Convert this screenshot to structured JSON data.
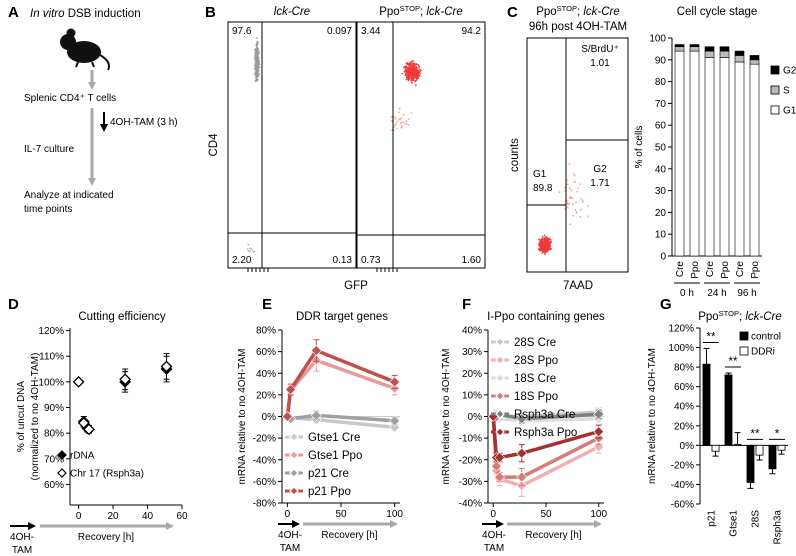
{
  "panel_a": {
    "letter": "A",
    "title": [
      {
        "text": "In vitro",
        "italic": true
      },
      {
        "text": " DSB induction"
      }
    ],
    "steps": [
      "Splenic CD4⁺ T cells",
      "4OH-TAM (3 h)",
      "IL-7 culture",
      "Analyze at indicated",
      "time points"
    ]
  },
  "panel_b": {
    "letter": "B",
    "ylabel": "CD4",
    "xlabel": "GFP",
    "plots": [
      {
        "title": [
          {
            "text": "lck-Cre",
            "italic": true
          }
        ],
        "quadrants": [
          "97.6",
          "0.097",
          "2.20",
          "0.13"
        ]
      },
      {
        "title": [
          {
            "text": "Ppo"
          },
          {
            "text": "STOP",
            "sup": true
          },
          {
            "text": "; "
          },
          {
            "text": "lck-Cre",
            "italic": true
          }
        ],
        "quadrants": [
          "3.44",
          "94.2",
          "0.73",
          "1.60"
        ]
      }
    ]
  },
  "panel_c": {
    "letter": "C",
    "title": [
      {
        "text": "Ppo"
      },
      {
        "text": "STOP",
        "sup": true
      },
      {
        "text": "; "
      },
      {
        "text": "lck-Cre",
        "italic": true
      }
    ],
    "subtitle": "96h post 4OH-TAM",
    "gates": [
      {
        "name": "S/BrdU⁺",
        "value": "1.01"
      },
      {
        "name": "G1",
        "value": "89.8"
      },
      {
        "name": "G2",
        "value": "1.71"
      }
    ],
    "ylabel": "counts",
    "xlabel": "7AAD"
  },
  "chart_data": [
    {
      "type": "bar",
      "stacked": true,
      "title": "Cell cycle stage",
      "ylabel": "% of cells",
      "categories": [
        "Cre",
        "Ppo",
        "Cre",
        "Ppo",
        "Cre",
        "Ppo"
      ],
      "groups": [
        "0 h",
        "24 h",
        "96 h"
      ],
      "series": [
        {
          "name": "G1",
          "color": "#ffffff",
          "values": [
            94,
            94,
            91,
            91,
            89,
            88
          ]
        },
        {
          "name": "S",
          "color": "#bbbbbb",
          "values": [
            2,
            2,
            3,
            3,
            3,
            2
          ]
        },
        {
          "name": "G2",
          "color": "#000000",
          "values": [
            1,
            1,
            2,
            2,
            2,
            2
          ]
        }
      ],
      "ylim": [
        0,
        100
      ],
      "yticks": [
        0,
        10,
        20,
        30,
        40,
        50,
        60,
        70,
        80,
        90,
        100
      ],
      "legend": "right"
    },
    {
      "type": "scatter",
      "panel": "D",
      "title": "Cutting efficiency",
      "ylabel": [
        "% of uncut DNA",
        "(normalized to no 4OH-TAM)"
      ],
      "xlabel": "Recovery [h]",
      "start_label": [
        "4OH-",
        "TAM"
      ],
      "series": [
        {
          "name": "rDNA",
          "marker": "filled",
          "color": "#000000",
          "x": [
            3,
            5,
            27,
            51
          ],
          "values": [
            84.5,
            82,
            100,
            105
          ],
          "errors": [
            2,
            1.5,
            4,
            5
          ]
        },
        {
          "name": "Chr 17 (Rsph3a)",
          "marker": "open",
          "color": "#000000",
          "x": [
            0,
            3,
            6,
            27,
            51
          ],
          "values": [
            100,
            84,
            81.5,
            101,
            106
          ],
          "errors": [
            null,
            1.5,
            1.5,
            4,
            5
          ]
        }
      ],
      "xlim": [
        -5,
        60
      ],
      "xticks": [
        0,
        20,
        40,
        60
      ],
      "ylim": [
        52,
        121
      ],
      "yticks": [
        {
          "value": 60,
          "label": "60%"
        },
        {
          "value": 70,
          "label": "70%"
        },
        {
          "value": 80,
          "label": "80%"
        },
        {
          "value": 90,
          "label": "90%"
        },
        {
          "value": 100,
          "label": "100%"
        },
        {
          "value": 110,
          "label": "110%"
        },
        {
          "value": 120,
          "label": "120%"
        }
      ],
      "legend": "lower left"
    },
    {
      "type": "line",
      "panel": "E",
      "title": "DDR target genes",
      "ylabel": "mRNA relative to no 4OH-TAM",
      "xlabel": "Recovery [h]",
      "start_label": [
        "4OH-",
        "TAM"
      ],
      "series": [
        {
          "name": "Gtse1 Cre",
          "color": "#c8c8c8",
          "x": [
            0,
            3,
            27,
            100
          ],
          "values": [
            0,
            -1,
            -3,
            -10
          ],
          "errors": [
            null,
            2,
            3,
            2
          ]
        },
        {
          "name": "Gtse1 Ppo",
          "color": "#e49c9a",
          "x": [
            0,
            3,
            27,
            100
          ],
          "values": [
            0,
            24,
            52,
            26
          ],
          "errors": [
            null,
            4,
            10,
            6
          ]
        },
        {
          "name": "p21 Cre",
          "color": "#a0a0a0",
          "x": [
            0,
            3,
            27,
            100
          ],
          "values": [
            0,
            -2,
            1,
            -4
          ],
          "errors": [
            null,
            2,
            4,
            3
          ]
        },
        {
          "name": "p21 Ppo",
          "color": "#c0504d",
          "x": [
            0,
            3,
            27,
            100
          ],
          "values": [
            0,
            25,
            61,
            32
          ],
          "errors": [
            null,
            5,
            10,
            6
          ]
        }
      ],
      "xlim": [
        -5,
        105
      ],
      "xticks": [
        0,
        50,
        100
      ],
      "ylim": [
        -80,
        80
      ],
      "yticks": [
        {
          "value": -80,
          "label": "-80%"
        },
        {
          "value": -60,
          "label": "-60%"
        },
        {
          "value": -40,
          "label": "-40%"
        },
        {
          "value": -20,
          "label": "-20%"
        },
        {
          "value": 0,
          "label": "0%"
        },
        {
          "value": 20,
          "label": "20%"
        },
        {
          "value": 40,
          "label": "40%"
        },
        {
          "value": 60,
          "label": "60%"
        },
        {
          "value": 80,
          "label": "80%"
        }
      ],
      "legend": "lower left"
    },
    {
      "type": "line",
      "panel": "F",
      "title": "I-Ppo containing genes",
      "ylabel": "mRNA relative to no 4OH-TAM",
      "xlabel": "Recovery [h]",
      "start_label": [
        "4OH-",
        "TAM"
      ],
      "series": [
        {
          "name": "28S Cre",
          "color": "#c8c8c8",
          "x": [
            0,
            3,
            6,
            27,
            100
          ],
          "values": [
            0,
            1,
            0,
            0,
            2
          ],
          "errors": [
            null,
            2,
            2,
            3,
            2
          ]
        },
        {
          "name": "28S Ppo",
          "color": "#f0b0ae",
          "x": [
            0,
            3,
            6,
            27,
            100
          ],
          "values": [
            0,
            -25,
            -29,
            -32,
            -14
          ],
          "errors": [
            null,
            2,
            3,
            5,
            3
          ]
        },
        {
          "name": "18S Cre",
          "color": "#dcdcdc",
          "x": [
            0,
            3,
            6,
            27,
            100
          ],
          "values": [
            0,
            -1,
            -1,
            -2,
            -1
          ],
          "errors": [
            null,
            1,
            1,
            2,
            2
          ]
        },
        {
          "name": "18S Ppo",
          "color": "#d47c79",
          "x": [
            0,
            3,
            6,
            27,
            100
          ],
          "values": [
            0,
            -23,
            -28,
            -28,
            -10
          ],
          "errors": [
            null,
            2,
            2,
            4,
            3
          ]
        },
        {
          "name": "Rsph3a Cre",
          "color": "#808080",
          "x": [
            0,
            3,
            6,
            27,
            100
          ],
          "values": [
            0,
            0,
            1,
            -1,
            1
          ],
          "errors": [
            null,
            1,
            1,
            2,
            2
          ]
        },
        {
          "name": "Rsph3a Ppo",
          "color": "#a3312e",
          "x": [
            0,
            3,
            6,
            27,
            100
          ],
          "values": [
            0,
            -19,
            -19,
            -17,
            -7
          ],
          "errors": [
            null,
            2,
            2,
            4,
            3
          ]
        }
      ],
      "xlim": [
        -5,
        105
      ],
      "xticks": [
        0,
        50,
        100
      ],
      "ylim": [
        -40,
        40
      ],
      "yticks": [
        {
          "value": -40,
          "label": "-40%"
        },
        {
          "value": -30,
          "label": "-30%"
        },
        {
          "value": -20,
          "label": "-20%"
        },
        {
          "value": -10,
          "label": "-10%"
        },
        {
          "value": 0,
          "label": "0%"
        },
        {
          "value": 10,
          "label": "10%"
        },
        {
          "value": 20,
          "label": "20%"
        },
        {
          "value": 30,
          "label": "30%"
        },
        {
          "value": 40,
          "label": "40%"
        }
      ],
      "legend": "upper left"
    },
    {
      "type": "bar",
      "stacked": false,
      "panel": "G",
      "title": [
        {
          "text": "Ppo"
        },
        {
          "text": "STOP",
          "sup": true
        },
        {
          "text": "; "
        },
        {
          "text": "lck-Cre",
          "italic": true
        }
      ],
      "ylabel": "mRNA relative to no 4OH-TAM",
      "categories": [
        "p21",
        "Gtse1",
        "28S",
        "Rsph3a"
      ],
      "series": [
        {
          "name": "control",
          "color": "#000000",
          "values": [
            83,
            72,
            -38,
            -24
          ],
          "errors": [
            16,
            2,
            6,
            5
          ]
        },
        {
          "name": "DDRi",
          "color": "#ffffff",
          "values": [
            -6,
            1,
            -10,
            -5
          ],
          "errors": [
            5,
            12,
            5,
            4
          ]
        }
      ],
      "significance": [
        "**",
        "**",
        "**",
        "*"
      ],
      "ylim": [
        -60,
        120
      ],
      "yticks": [
        {
          "value": -60,
          "label": "-60%"
        },
        {
          "value": -40,
          "label": "-40%"
        },
        {
          "value": -20,
          "label": "-20%"
        },
        {
          "value": 0,
          "label": "0%"
        },
        {
          "value": 20,
          "label": "20%"
        },
        {
          "value": 40,
          "label": "40%"
        },
        {
          "value": 60,
          "label": "60%"
        },
        {
          "value": 80,
          "label": "80%"
        },
        {
          "value": 100,
          "label": "100%"
        },
        {
          "value": 120,
          "label": "120%"
        }
      ],
      "legend": "upper right"
    }
  ]
}
